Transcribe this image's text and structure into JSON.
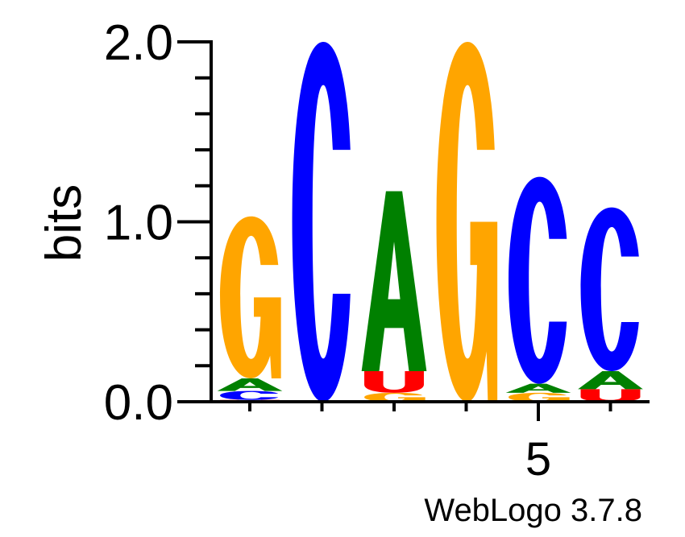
{
  "chart_data": {
    "type": "sequence-logo",
    "ylabel": "bits",
    "ylim": [
      0,
      2
    ],
    "y_ticks": [
      "0.0",
      "1.0",
      "2.0"
    ],
    "x_tick_labels": [
      {
        "position": 5,
        "label": "5"
      }
    ],
    "positions": [
      {
        "position": 1,
        "stack": [
          {
            "letter": "U",
            "bits": 0.01
          },
          {
            "letter": "C",
            "bits": 0.05
          },
          {
            "letter": "A",
            "bits": 0.07
          },
          {
            "letter": "G",
            "bits": 0.9
          }
        ]
      },
      {
        "position": 2,
        "stack": [
          {
            "letter": "C",
            "bits": 2.0
          }
        ]
      },
      {
        "position": 3,
        "stack": [
          {
            "letter": "G",
            "bits": 0.05
          },
          {
            "letter": "U",
            "bits": 0.12
          },
          {
            "letter": "A",
            "bits": 1.0
          }
        ]
      },
      {
        "position": 4,
        "stack": [
          {
            "letter": "G",
            "bits": 2.0
          }
        ]
      },
      {
        "position": 5,
        "stack": [
          {
            "letter": "G",
            "bits": 0.05
          },
          {
            "letter": "A",
            "bits": 0.05
          },
          {
            "letter": "C",
            "bits": 1.15
          }
        ]
      },
      {
        "position": 6,
        "stack": [
          {
            "letter": "U",
            "bits": 0.07
          },
          {
            "letter": "A",
            "bits": 0.1
          },
          {
            "letter": "C",
            "bits": 0.91
          }
        ]
      }
    ],
    "colors": {
      "A": "#008000",
      "C": "#0000ff",
      "G": "#ffa500",
      "U": "#ff0000"
    }
  },
  "footer": {
    "text": "WebLogo 3.7.8"
  }
}
